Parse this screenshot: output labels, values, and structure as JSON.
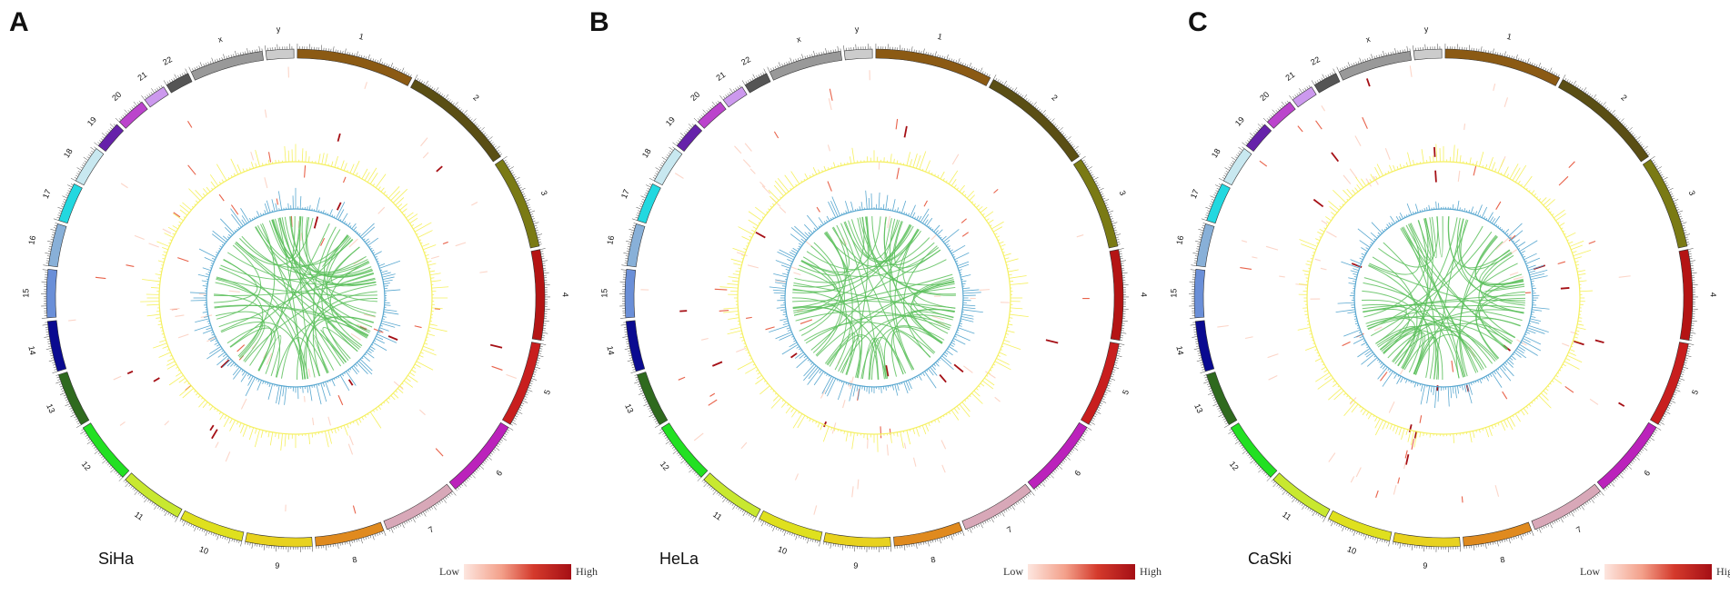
{
  "panels": [
    {
      "letter": "A",
      "cell_line": "SiHa",
      "seed": 11
    },
    {
      "letter": "B",
      "cell_line": "HeLa",
      "seed": 37
    },
    {
      "letter": "C",
      "cell_line": "CaSki",
      "seed": 73
    }
  ],
  "legend": {
    "low": "Low",
    "high": "High"
  },
  "chromosomes": [
    {
      "name": "1",
      "size": 249,
      "color": "#8b5a14"
    },
    {
      "name": "2",
      "size": 243,
      "color": "#5a4e14"
    },
    {
      "name": "3",
      "size": 198,
      "color": "#7a7a14"
    },
    {
      "name": "4",
      "size": 191,
      "color": "#b41414"
    },
    {
      "name": "5",
      "size": 181,
      "color": "#c81e1e"
    },
    {
      "name": "6",
      "size": 171,
      "color": "#bb22bb"
    },
    {
      "name": "7",
      "size": 159,
      "color": "#d8a8b8"
    },
    {
      "name": "8",
      "size": 146,
      "color": "#e08a1e"
    },
    {
      "name": "9",
      "size": 141,
      "color": "#e8d21e"
    },
    {
      "name": "10",
      "size": 136,
      "color": "#dfe01e"
    },
    {
      "name": "11",
      "size": 135,
      "color": "#c8e830"
    },
    {
      "name": "12",
      "size": 133,
      "color": "#22e022"
    },
    {
      "name": "13",
      "size": 115,
      "color": "#2f6a1e"
    },
    {
      "name": "14",
      "size": 107,
      "color": "#0a0a90"
    },
    {
      "name": "15",
      "size": 102,
      "color": "#6a8fd8"
    },
    {
      "name": "16",
      "size": 90,
      "color": "#88b0d8"
    },
    {
      "name": "17",
      "size": 83,
      "color": "#22d8e0"
    },
    {
      "name": "18",
      "size": 80,
      "color": "#c8e8f0"
    },
    {
      "name": "19",
      "size": 59,
      "color": "#6622aa"
    },
    {
      "name": "20",
      "size": 63,
      "color": "#bb44cc"
    },
    {
      "name": "21",
      "size": 48,
      "color": "#cc99ee"
    },
    {
      "name": "22",
      "size": 51,
      "color": "#555555"
    },
    {
      "name": "x",
      "size": 155,
      "color": "#999999"
    },
    {
      "name": "y",
      "size": 59,
      "color": "#cccccc"
    }
  ],
  "track_colors": {
    "heat_low": "#fcd5c8",
    "heat_mid": "#e8624a",
    "heat_high": "#a50f15",
    "yellow_track": "#f5f060",
    "blue_track": "#5aa8d0",
    "links": "#5cbf5c"
  }
}
